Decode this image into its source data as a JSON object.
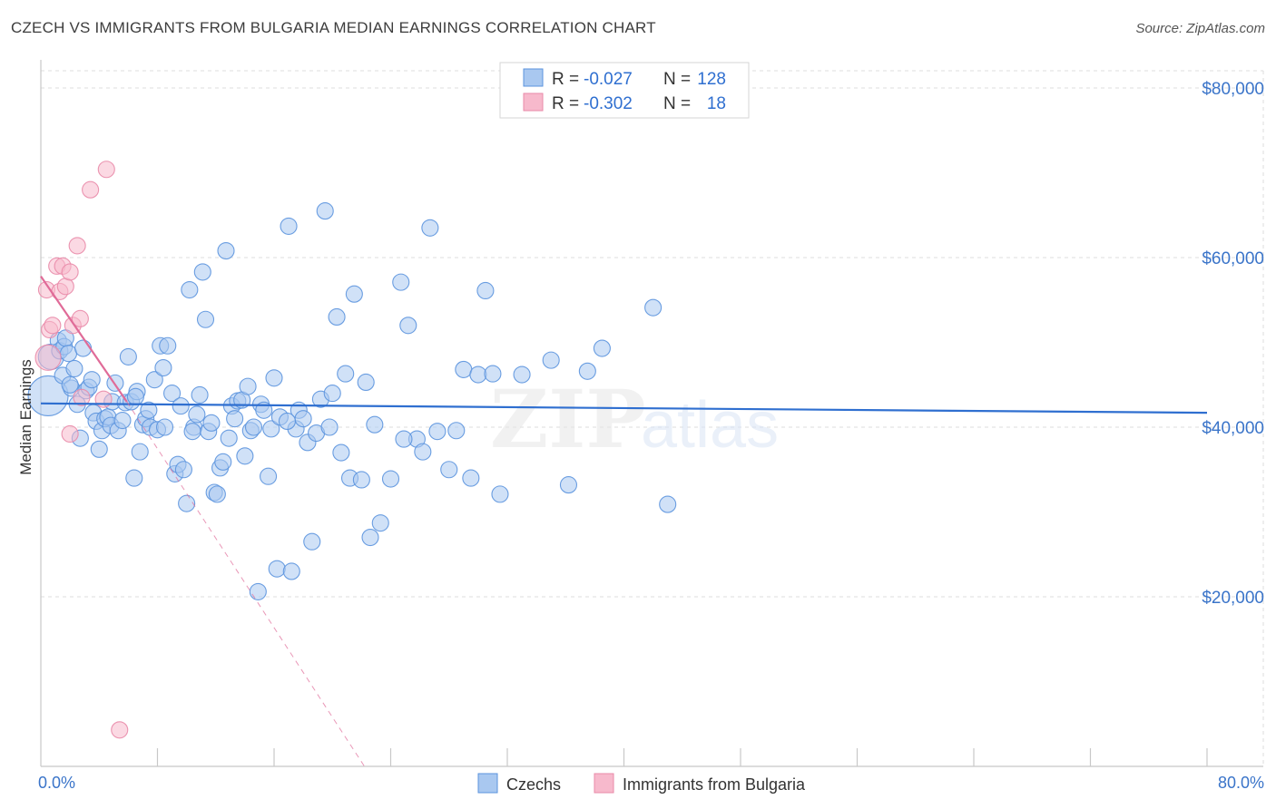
{
  "title": "CZECH VS IMMIGRANTS FROM BULGARIA MEDIAN EARNINGS CORRELATION CHART",
  "source": "Source: ZipAtlas.com",
  "watermark": {
    "zip": "ZIP",
    "atlas": "atlas"
  },
  "colors": {
    "blue_fill": "#a9c8f0",
    "blue_stroke": "#5b93de",
    "blue_line": "#2f6fd0",
    "pink_fill": "#f7b9cc",
    "pink_stroke": "#e98aa8",
    "pink_line": "#e06b98",
    "grid": "#dddddd",
    "axis_text": "#3a74c9"
  },
  "legend": {
    "rows": [
      {
        "series": "blue",
        "r_label": "R =",
        "r_value": "-0.027",
        "n_label": "N =",
        "n_value": "128"
      },
      {
        "series": "pink",
        "r_label": "R =",
        "r_value": "-0.302",
        "n_label": "N =",
        "n_value": "18"
      }
    ]
  },
  "bottom_legend": [
    {
      "series": "blue",
      "label": "Czechs"
    },
    {
      "series": "pink",
      "label": "Immigrants from Bulgaria"
    }
  ],
  "chart_data": {
    "type": "scatter",
    "xlabel": "",
    "ylabel": "Median Earnings",
    "xlim": [
      0,
      80
    ],
    "ylim": [
      0,
      80000
    ],
    "x_tick_labels": [
      {
        "value": 0,
        "label": "0.0%"
      },
      {
        "value": 80,
        "label": "80.0%"
      }
    ],
    "x_minor_ticks": [
      8,
      16,
      24,
      32,
      40,
      48,
      56,
      64,
      72,
      80
    ],
    "y_ticks": [
      {
        "value": 20000,
        "label": "$20,000"
      },
      {
        "value": 40000,
        "label": "$40,000"
      },
      {
        "value": 60000,
        "label": "$60,000"
      },
      {
        "value": 80000,
        "label": "$80,000"
      }
    ],
    "series": [
      {
        "name": "Czechs",
        "color": "blue",
        "trend": {
          "x0": 0,
          "y0": 42800,
          "x1": 80,
          "y1": 41700,
          "dashed_to": null
        },
        "points": [
          [
            0.5,
            43700,
            "big"
          ],
          [
            0.7,
            48300,
            "mid"
          ],
          [
            1.2,
            50200
          ],
          [
            1.3,
            49000
          ],
          [
            1.5,
            46100
          ],
          [
            1.6,
            49500
          ],
          [
            1.7,
            50500
          ],
          [
            1.9,
            48700
          ],
          [
            2.1,
            44600
          ],
          [
            2.3,
            46900
          ],
          [
            2.5,
            42700
          ],
          [
            2.7,
            38700
          ],
          [
            2.9,
            49300
          ],
          [
            3.1,
            44300
          ],
          [
            3.3,
            44700
          ],
          [
            3.5,
            45600
          ],
          [
            3.6,
            41700
          ],
          [
            3.8,
            40700
          ],
          [
            4.0,
            37400
          ],
          [
            4.2,
            39600
          ],
          [
            4.4,
            41000
          ],
          [
            4.6,
            41200
          ],
          [
            4.8,
            40200
          ],
          [
            4.9,
            43000
          ],
          [
            5.1,
            45200
          ],
          [
            5.3,
            39600
          ],
          [
            5.6,
            40800
          ],
          [
            5.8,
            42900
          ],
          [
            6.0,
            48300
          ],
          [
            6.2,
            43000
          ],
          [
            6.4,
            34000
          ],
          [
            6.6,
            44200
          ],
          [
            6.8,
            37100
          ],
          [
            7.0,
            40300
          ],
          [
            7.2,
            41000
          ],
          [
            7.4,
            42000
          ],
          [
            7.5,
            40000
          ],
          [
            7.8,
            45600
          ],
          [
            8.0,
            39700
          ],
          [
            8.2,
            49600
          ],
          [
            8.4,
            47000
          ],
          [
            8.5,
            40000
          ],
          [
            8.7,
            49600
          ],
          [
            9.0,
            44000
          ],
          [
            9.2,
            34500
          ],
          [
            9.4,
            35600
          ],
          [
            9.6,
            42500
          ],
          [
            9.8,
            35000
          ],
          [
            10.0,
            31000
          ],
          [
            10.2,
            56200
          ],
          [
            10.5,
            40000
          ],
          [
            10.7,
            41500
          ],
          [
            10.9,
            43800
          ],
          [
            11.1,
            58300
          ],
          [
            11.3,
            52700
          ],
          [
            11.5,
            39500
          ],
          [
            11.7,
            40500
          ],
          [
            11.9,
            32300
          ],
          [
            12.1,
            32100
          ],
          [
            12.3,
            35200
          ],
          [
            12.5,
            35900
          ],
          [
            12.7,
            60800
          ],
          [
            12.9,
            38700
          ],
          [
            13.1,
            42500
          ],
          [
            13.3,
            41000
          ],
          [
            13.5,
            43100
          ],
          [
            13.8,
            43200
          ],
          [
            14.0,
            36600
          ],
          [
            14.2,
            44800
          ],
          [
            14.4,
            39600
          ],
          [
            14.6,
            40000
          ],
          [
            14.9,
            20600
          ],
          [
            15.1,
            42700
          ],
          [
            15.3,
            42000
          ],
          [
            15.6,
            34200
          ],
          [
            15.8,
            39800
          ],
          [
            16.0,
            45800
          ],
          [
            16.2,
            23300
          ],
          [
            16.4,
            41200
          ],
          [
            17.0,
            63700
          ],
          [
            17.2,
            23000
          ],
          [
            17.5,
            39800
          ],
          [
            17.7,
            42000
          ],
          [
            18.0,
            41000
          ],
          [
            18.3,
            38200
          ],
          [
            18.6,
            26500
          ],
          [
            18.9,
            39300
          ],
          [
            19.2,
            43300
          ],
          [
            19.5,
            65500
          ],
          [
            19.8,
            40000
          ],
          [
            20.0,
            44000
          ],
          [
            20.3,
            53000
          ],
          [
            20.6,
            37000
          ],
          [
            20.9,
            46300
          ],
          [
            21.2,
            34000
          ],
          [
            21.5,
            55700
          ],
          [
            22.0,
            33800
          ],
          [
            22.3,
            45300
          ],
          [
            22.6,
            27000
          ],
          [
            22.9,
            40300
          ],
          [
            23.3,
            28700
          ],
          [
            24.0,
            33900
          ],
          [
            24.7,
            57100
          ],
          [
            25.2,
            52000
          ],
          [
            25.8,
            38600
          ],
          [
            26.2,
            37100
          ],
          [
            26.7,
            63500
          ],
          [
            27.2,
            39500
          ],
          [
            28.0,
            35000
          ],
          [
            28.5,
            39600
          ],
          [
            29.0,
            46800
          ],
          [
            29.5,
            34000
          ],
          [
            30.0,
            46200
          ],
          [
            30.5,
            56100
          ],
          [
            31.0,
            46300
          ],
          [
            31.5,
            32100
          ],
          [
            33.0,
            46200
          ],
          [
            35.0,
            47900
          ],
          [
            36.2,
            33200
          ],
          [
            37.5,
            46600
          ],
          [
            38.5,
            49300
          ],
          [
            42.0,
            54100
          ],
          [
            43.0,
            30900
          ],
          [
            2.0,
            45000
          ],
          [
            6.5,
            43600
          ],
          [
            10.4,
            39500
          ],
          [
            16.9,
            40700
          ],
          [
            24.9,
            38600
          ]
        ]
      },
      {
        "name": "Immigrants from Bulgaria",
        "color": "pink",
        "trend": {
          "x0": 0.0,
          "y0": 57800,
          "x1": 5.9,
          "y1": 43000,
          "dashed_to": {
            "x": 22.2,
            "y": 0
          }
        },
        "points": [
          [
            0.4,
            56200
          ],
          [
            0.6,
            51500
          ],
          [
            0.8,
            52000
          ],
          [
            1.1,
            59000
          ],
          [
            1.3,
            56000
          ],
          [
            1.5,
            59000
          ],
          [
            1.7,
            56600
          ],
          [
            2.0,
            58300
          ],
          [
            2.2,
            52000
          ],
          [
            2.5,
            61400
          ],
          [
            2.7,
            52800
          ],
          [
            3.4,
            68000
          ],
          [
            4.5,
            70400
          ],
          [
            2.0,
            39200
          ],
          [
            2.8,
            43500
          ],
          [
            5.4,
            4300
          ],
          [
            0.5,
            48200,
            "mid"
          ],
          [
            4.3,
            43300
          ]
        ]
      }
    ]
  }
}
